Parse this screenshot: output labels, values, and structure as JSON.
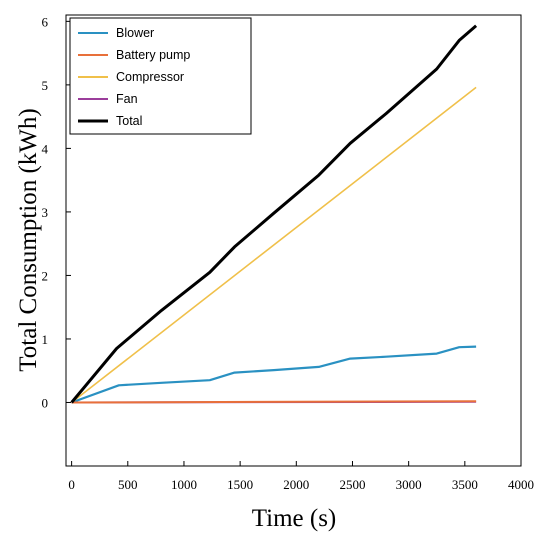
{
  "chart_data": {
    "type": "line",
    "title": "",
    "xlabel": "Time (s)",
    "ylabel": "Total Consumption (kWh)",
    "xlim": [
      -50,
      4000
    ],
    "ylim": [
      -1,
      6.1
    ],
    "xticks": [
      0,
      500,
      1000,
      1500,
      2000,
      2500,
      3000,
      3500,
      4000
    ],
    "yticks": [
      0,
      1,
      2,
      3,
      4,
      5,
      6
    ],
    "grid": false,
    "legend_position": "top-left",
    "series": [
      {
        "name": "Blower",
        "color": "#2a91c2",
        "points": [
          [
            0,
            0
          ],
          [
            420,
            0.27
          ],
          [
            800,
            0.31
          ],
          [
            1230,
            0.35
          ],
          [
            1450,
            0.47
          ],
          [
            1800,
            0.51
          ],
          [
            2200,
            0.56
          ],
          [
            2480,
            0.69
          ],
          [
            2800,
            0.72
          ],
          [
            3250,
            0.77
          ],
          [
            3450,
            0.87
          ],
          [
            3600,
            0.88
          ]
        ]
      },
      {
        "name": "Battery pump",
        "color": "#e8703a",
        "points": [
          [
            0,
            0
          ],
          [
            3600,
            0.02
          ]
        ]
      },
      {
        "name": "Compressor",
        "color": "#f0c04a",
        "points": [
          [
            0,
            0
          ],
          [
            3600,
            4.96
          ]
        ]
      },
      {
        "name": "Fan",
        "color": "#9b3d9b",
        "points": [
          [
            0,
            0
          ],
          [
            3600,
            0.01
          ]
        ]
      },
      {
        "name": "Total",
        "color": "#000000",
        "points": [
          [
            0,
            0
          ],
          [
            400,
            0.85
          ],
          [
            800,
            1.45
          ],
          [
            1230,
            2.05
          ],
          [
            1450,
            2.45
          ],
          [
            1800,
            2.98
          ],
          [
            2200,
            3.58
          ],
          [
            2480,
            4.08
          ],
          [
            2800,
            4.55
          ],
          [
            3250,
            5.25
          ],
          [
            3450,
            5.7
          ],
          [
            3600,
            5.93
          ]
        ]
      }
    ]
  }
}
